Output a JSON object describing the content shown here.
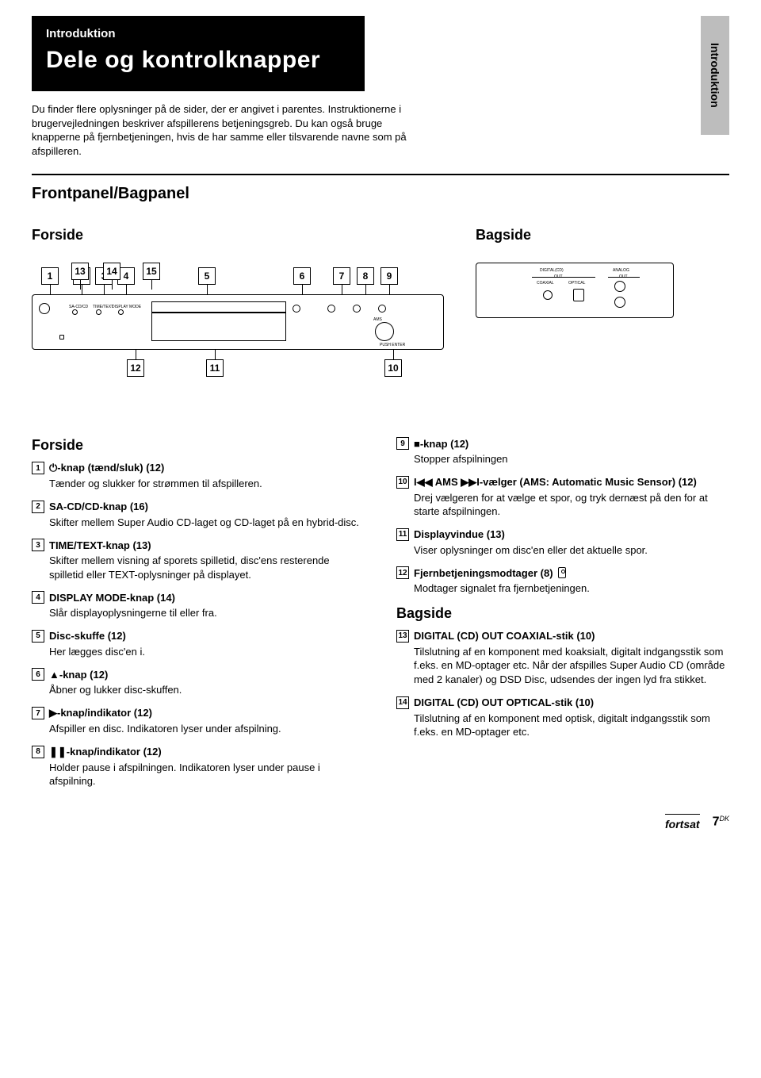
{
  "header": {
    "kicker": "Introduktion",
    "title": "Dele og kontrolknapper"
  },
  "sideTab": "Introduktion",
  "intro": "Du finder flere oplysninger på de sider, der er angivet i parentes. Instruktionerne i brugervejledningen beskriver afspillerens betjeningsgreb. Du kan også bruge knapperne på fjernbetjeningen, hvis de har samme eller tilsvarende navne som på afspilleren.",
  "sectionHead": "Frontpanel/Bagpanel",
  "front": {
    "label": "Forside",
    "topCallouts": [
      "1",
      "2",
      "3",
      "4",
      "5",
      "6",
      "7",
      "8",
      "9"
    ],
    "topPositions": [
      12,
      52,
      80,
      108,
      210,
      330,
      380,
      410,
      440
    ],
    "bottomCallouts": [
      "12",
      "11",
      "10"
    ],
    "bottomPositions": [
      120,
      220,
      445
    ]
  },
  "back": {
    "label": "Bagside",
    "topCallouts": [
      "13",
      "14",
      "15"
    ],
    "topPositions": [
      90,
      130,
      180
    ]
  },
  "deviceLabels": {
    "front": {
      "sacd": "SA-CD/CD",
      "timetext": "TIME/TEXT",
      "displaymode": "DISPLAY MODE",
      "pushenter": "PUSH ENTER",
      "ams": "AMS"
    },
    "back": {
      "digitalcd": "DIGITAL(CD)",
      "out": "OUT",
      "coaxial": "COAXIAL",
      "optical": "OPTICAL",
      "analog": "ANALOG",
      "analogout": "OUT"
    }
  },
  "leftCol": {
    "heading": "Forside",
    "items": [
      {
        "num": "1",
        "title": "⏻-knap (tænd/sluk) (12)",
        "body": "Tænder og slukker for strømmen til afspilleren."
      },
      {
        "num": "2",
        "title": "SA-CD/CD-knap (16)",
        "body": "Skifter mellem Super Audio CD-laget og CD-laget på en hybrid-disc."
      },
      {
        "num": "3",
        "title": "TIME/TEXT-knap (13)",
        "body": "Skifter mellem visning af sporets spilletid, disc'ens resterende spilletid eller TEXT-oplysninger på displayet."
      },
      {
        "num": "4",
        "title": "DISPLAY MODE-knap (14)",
        "body": "Slår displayoplysningerne til eller fra."
      },
      {
        "num": "5",
        "title": "Disc-skuffe (12)",
        "body": "Her lægges disc'en i."
      },
      {
        "num": "6",
        "title": "▲-knap (12)",
        "body": "Åbner og lukker disc-skuffen."
      },
      {
        "num": "7",
        "title": "▶-knap/indikator (12)",
        "body": "Afspiller en disc. Indikatoren lyser under afspilning."
      },
      {
        "num": "8",
        "title": "❚❚-knap/indikator (12)",
        "body": "Holder pause i afspilningen. Indikatoren lyser under pause i afspilning."
      }
    ]
  },
  "rightCol": {
    "items": [
      {
        "num": "9",
        "title": "■-knap (12)",
        "body": "Stopper afspilningen"
      },
      {
        "num": "10",
        "title": "I◀◀ AMS ▶▶I-vælger (AMS: Automatic Music Sensor) (12)",
        "body": "Drej vælgeren for at vælge et spor, og tryk dernæst på den for at starte afspilningen."
      },
      {
        "num": "11",
        "title": "Displayvindue (13)",
        "body": "Viser oplysninger om disc'en eller det aktuelle spor."
      },
      {
        "num": "12",
        "title": "Fjernbetjeningsmodtager   (8)",
        "body": "Modtager signalet fra fjernbetjeningen.",
        "remoteIcon": true
      }
    ],
    "heading2": "Bagside",
    "items2": [
      {
        "num": "13",
        "title": "DIGITAL (CD) OUT COAXIAL-stik (10)",
        "body": "Tilslutning af en komponent med koaksialt, digitalt indgangsstik som f.eks. en MD-optager etc. Når der afspilles Super Audio CD (område med 2 kanaler) og DSD Disc, udsendes der ingen lyd fra stikket."
      },
      {
        "num": "14",
        "title": "DIGITAL (CD) OUT OPTICAL-stik (10)",
        "body": "Tilslutning af en komponent med optisk, digitalt indgangsstik som f.eks. en MD-optager etc."
      }
    ]
  },
  "footer": {
    "cont": "fortsat",
    "page": "7",
    "lang": "DK"
  }
}
